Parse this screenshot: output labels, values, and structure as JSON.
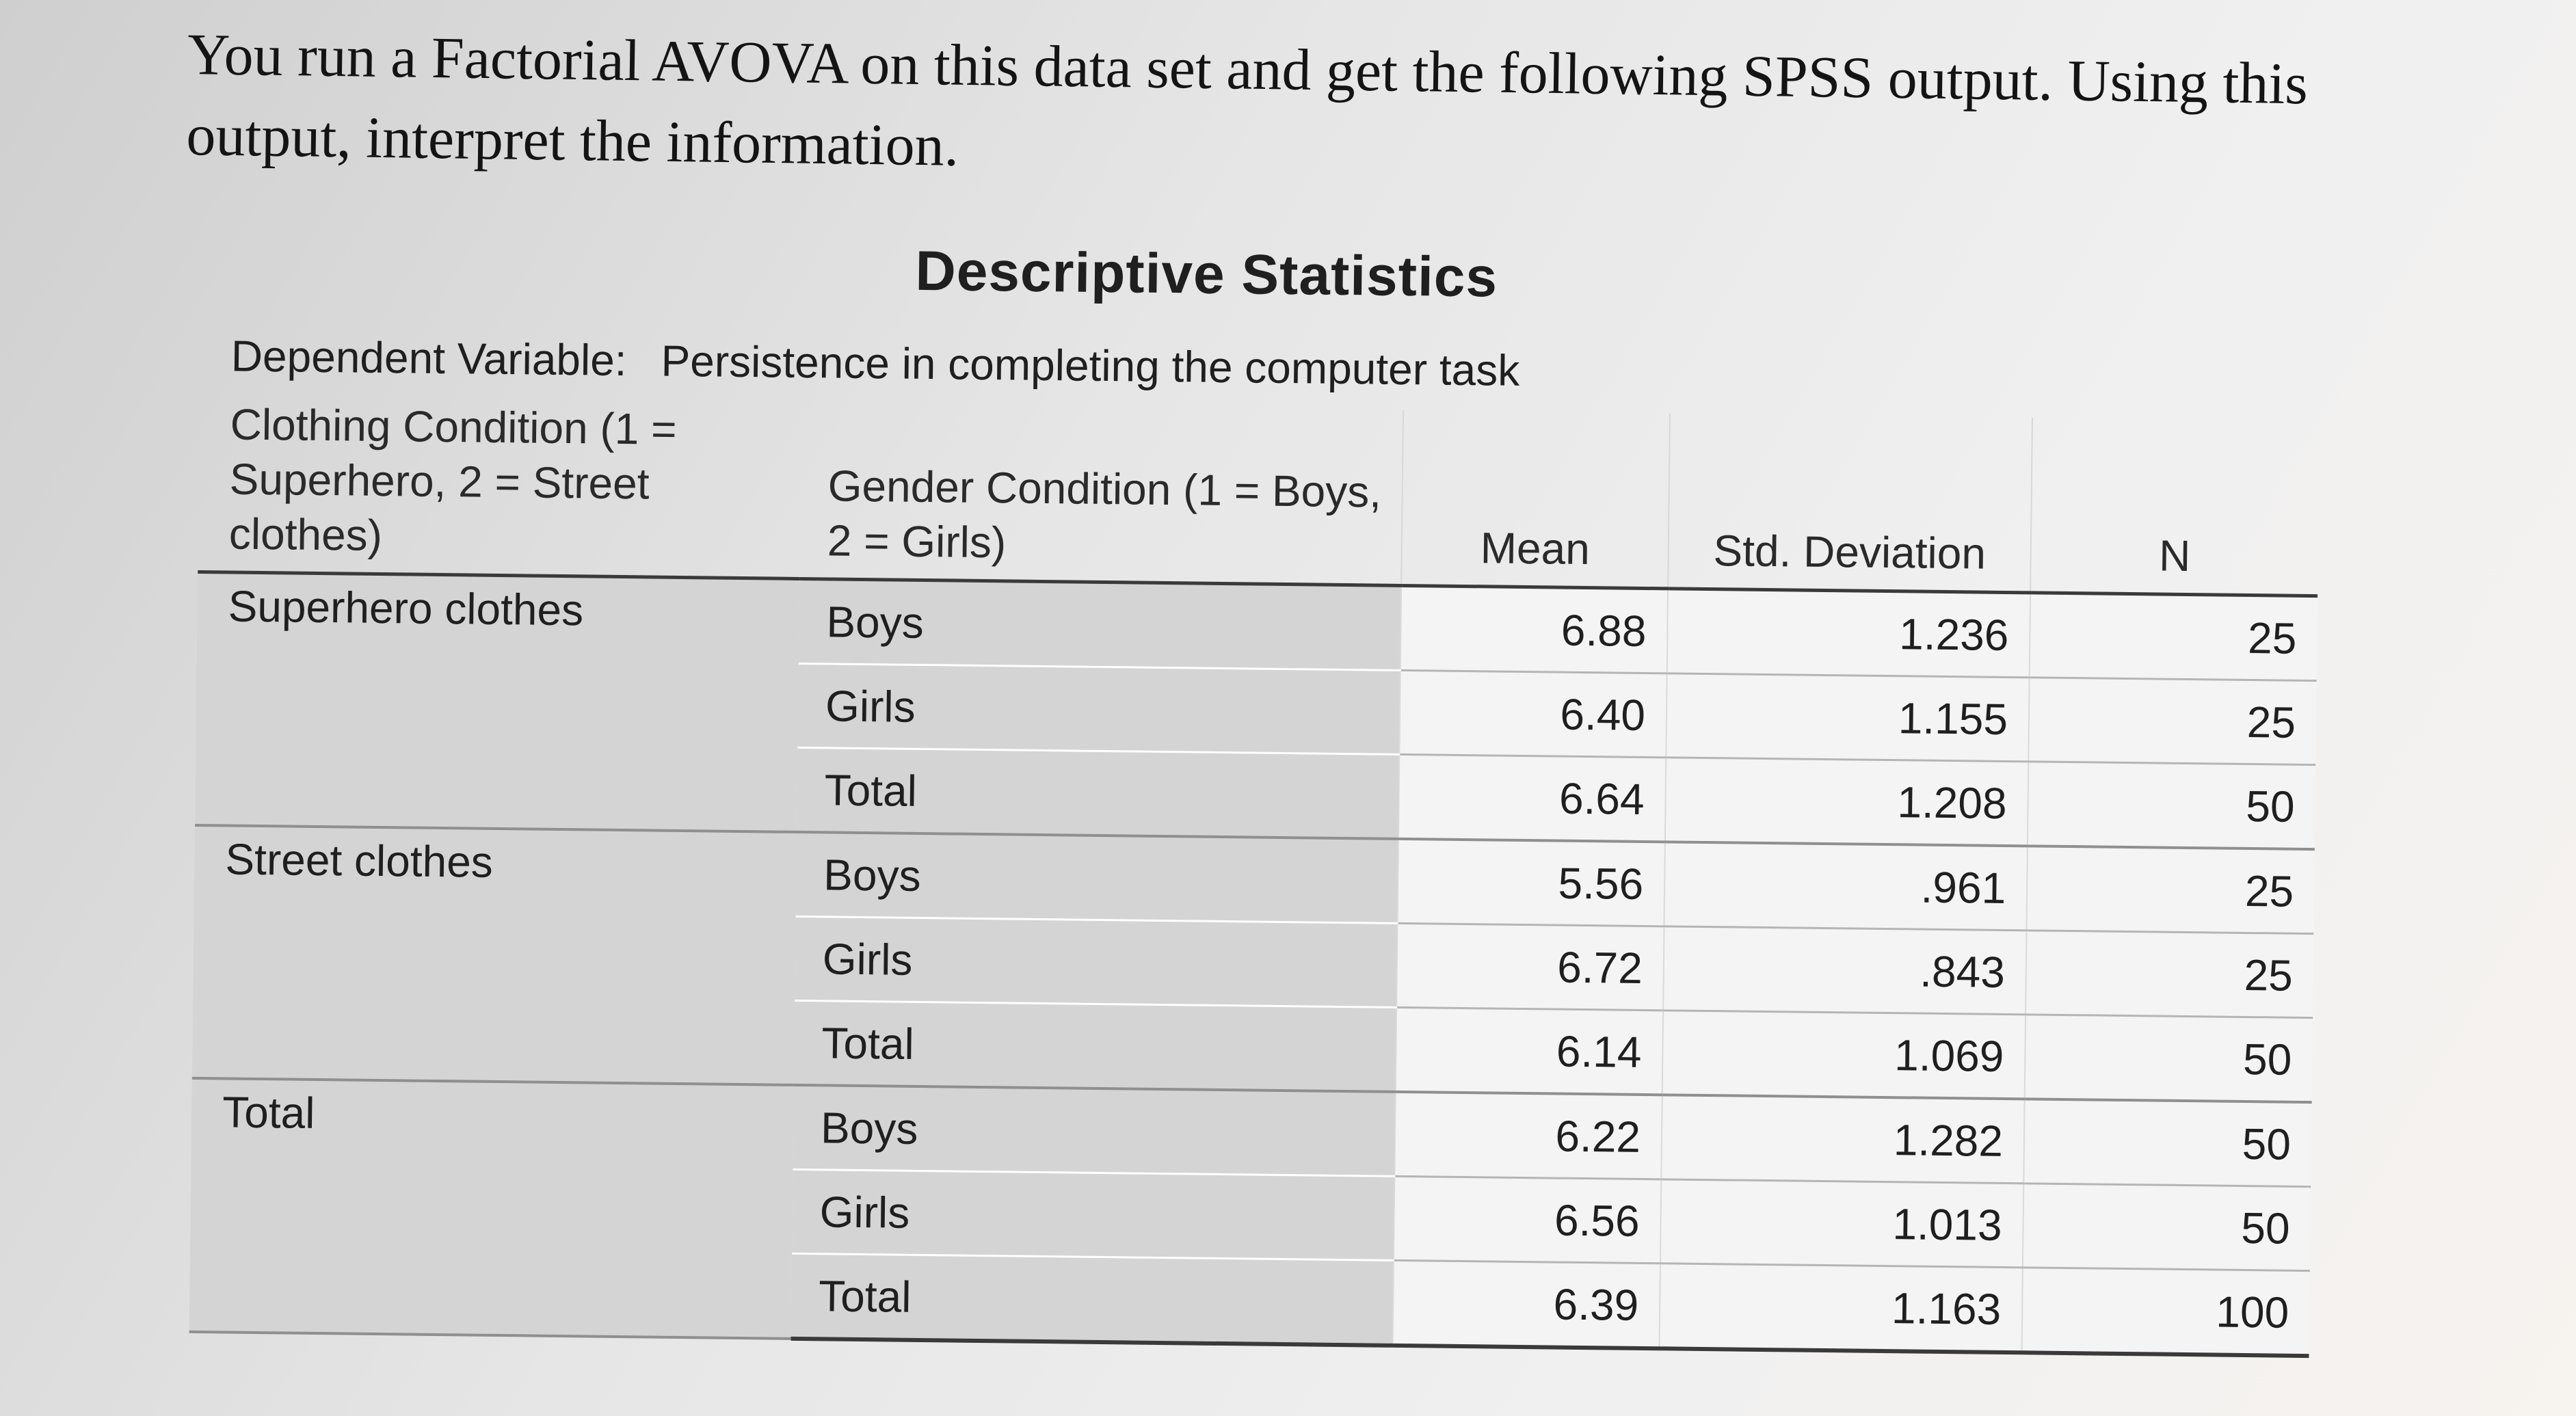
{
  "prompt": {
    "line1": "You run a Factorial AVOVA on this data set and get the following SPSS output. Using this",
    "line2": "output, interpret the information."
  },
  "table": {
    "title": "Descriptive Statistics",
    "dependent_label": "Dependent Variable:",
    "dependent_value": "Persistence in completing the computer task",
    "headers": {
      "clothing": "Clothing Condition (1 = Superhero, 2 = Street clothes)",
      "gender": "Gender Condition (1 = Boys, 2 = Girls)",
      "mean": "Mean",
      "sd": "Std. Deviation",
      "n": "N"
    },
    "groups": [
      {
        "label": "Superhero clothes",
        "rows": [
          {
            "gender": "Boys",
            "mean": "6.88",
            "sd": "1.236",
            "n": "25"
          },
          {
            "gender": "Girls",
            "mean": "6.40",
            "sd": "1.155",
            "n": "25"
          },
          {
            "gender": "Total",
            "mean": "6.64",
            "sd": "1.208",
            "n": "50"
          }
        ]
      },
      {
        "label": "Street clothes",
        "rows": [
          {
            "gender": "Boys",
            "mean": "5.56",
            "sd": ".961",
            "n": "25"
          },
          {
            "gender": "Girls",
            "mean": "6.72",
            "sd": ".843",
            "n": "25"
          },
          {
            "gender": "Total",
            "mean": "6.14",
            "sd": "1.069",
            "n": "50"
          }
        ]
      },
      {
        "label": "Total",
        "rows": [
          {
            "gender": "Boys",
            "mean": "6.22",
            "sd": "1.282",
            "n": "50"
          },
          {
            "gender": "Girls",
            "mean": "6.56",
            "sd": "1.013",
            "n": "50"
          },
          {
            "gender": "Total",
            "mean": "6.39",
            "sd": "1.163",
            "n": "100"
          }
        ]
      }
    ]
  }
}
